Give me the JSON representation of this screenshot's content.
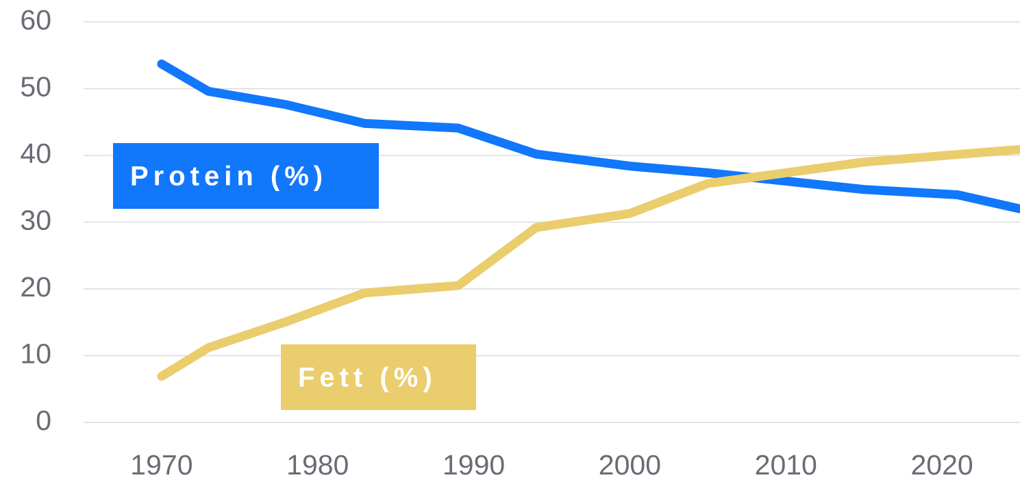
{
  "chart_data": {
    "type": "line",
    "series": [
      {
        "name": "Protein (%)",
        "color": "#1177fb",
        "x": [
          1970,
          1973,
          1978,
          1983,
          1989,
          1994,
          2000,
          2005,
          2015,
          2021,
          2025
        ],
        "values": [
          53.7,
          49.6,
          47.6,
          44.8,
          44.1,
          40.2,
          38.4,
          37.4,
          34.9,
          34.1,
          32.0
        ]
      },
      {
        "name": "Fett (%)",
        "color": "#eacd6c",
        "x": [
          1970,
          1973,
          1978,
          1983,
          1989,
          1994,
          2000,
          2005,
          2015,
          2025
        ],
        "values": [
          6.9,
          11.2,
          15.1,
          19.4,
          20.5,
          29.2,
          31.3,
          35.8,
          39.0,
          40.9
        ]
      }
    ],
    "xlim": [
      1965,
      2025
    ],
    "xticks": [
      1970,
      1980,
      1990,
      2000,
      2010,
      2020
    ],
    "ylim": [
      0,
      60
    ],
    "yticks": [
      0,
      10,
      20,
      30,
      40,
      50,
      60
    ],
    "grid": true
  }
}
